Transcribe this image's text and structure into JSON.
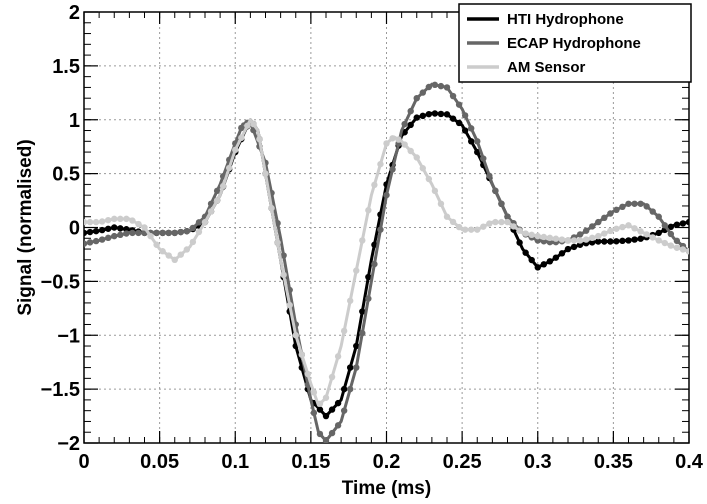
{
  "chart_data": {
    "type": "line",
    "title": "",
    "xlabel": "Time (ms)",
    "ylabel": "Signal (normalised)",
    "xlim": [
      0,
      0.4
    ],
    "ylim": [
      -2,
      2
    ],
    "grid": true,
    "legend_position": "top-right",
    "x_ticks": [
      0,
      0.05,
      0.1,
      0.15,
      0.2,
      0.25,
      0.3,
      0.35,
      0.4
    ],
    "x_tick_labels": [
      "0",
      "0.05",
      "0.1",
      "0.15",
      "0.2",
      "0.25",
      "0.3",
      "0.35",
      "0.4"
    ],
    "y_ticks": [
      -2,
      -1.5,
      -1,
      -0.5,
      0,
      0.5,
      1,
      1.5,
      2
    ],
    "y_tick_labels": [
      "−2",
      "−1.5",
      "−1",
      "−0.5",
      "0",
      "0.5",
      "1",
      "1.5",
      "2"
    ],
    "series": [
      {
        "name": "HTI Hydrophone",
        "color": "#000000",
        "points": [
          [
            0,
            -0.05
          ],
          [
            0.01,
            -0.03
          ],
          [
            0.02,
            0
          ],
          [
            0.03,
            -0.02
          ],
          [
            0.04,
            -0.05
          ],
          [
            0.05,
            -0.05
          ],
          [
            0.06,
            -0.05
          ],
          [
            0.07,
            -0.03
          ],
          [
            0.08,
            0.05
          ],
          [
            0.09,
            0.3
          ],
          [
            0.1,
            0.7
          ],
          [
            0.11,
            1.0
          ],
          [
            0.115,
            0.9
          ],
          [
            0.12,
            0.5
          ],
          [
            0.13,
            -0.3
          ],
          [
            0.14,
            -1.1
          ],
          [
            0.15,
            -1.6
          ],
          [
            0.16,
            -1.75
          ],
          [
            0.17,
            -1.6
          ],
          [
            0.18,
            -1.1
          ],
          [
            0.19,
            -0.3
          ],
          [
            0.2,
            0.4
          ],
          [
            0.21,
            0.85
          ],
          [
            0.22,
            1.02
          ],
          [
            0.23,
            1.06
          ],
          [
            0.24,
            1.05
          ],
          [
            0.25,
            0.95
          ],
          [
            0.26,
            0.7
          ],
          [
            0.27,
            0.4
          ],
          [
            0.28,
            0.1
          ],
          [
            0.29,
            -0.2
          ],
          [
            0.3,
            -0.37
          ],
          [
            0.31,
            -0.3
          ],
          [
            0.32,
            -0.2
          ],
          [
            0.33,
            -0.15
          ],
          [
            0.34,
            -0.13
          ],
          [
            0.35,
            -0.13
          ],
          [
            0.36,
            -0.12
          ],
          [
            0.37,
            -0.1
          ],
          [
            0.38,
            -0.05
          ],
          [
            0.39,
            0.02
          ],
          [
            0.4,
            0.05
          ]
        ]
      },
      {
        "name": "ECAP Hydrophone",
        "color": "#666666",
        "points": [
          [
            0,
            -0.15
          ],
          [
            0.01,
            -0.12
          ],
          [
            0.02,
            -0.08
          ],
          [
            0.03,
            -0.05
          ],
          [
            0.04,
            -0.05
          ],
          [
            0.05,
            -0.05
          ],
          [
            0.06,
            -0.05
          ],
          [
            0.07,
            -0.03
          ],
          [
            0.08,
            0.1
          ],
          [
            0.09,
            0.4
          ],
          [
            0.1,
            0.78
          ],
          [
            0.105,
            0.96
          ],
          [
            0.11,
            0.98
          ],
          [
            0.12,
            0.6
          ],
          [
            0.13,
            -0.1
          ],
          [
            0.14,
            -0.9
          ],
          [
            0.15,
            -1.6
          ],
          [
            0.155,
            -1.9
          ],
          [
            0.16,
            -1.98
          ],
          [
            0.17,
            -1.8
          ],
          [
            0.18,
            -1.3
          ],
          [
            0.19,
            -0.5
          ],
          [
            0.2,
            0.3
          ],
          [
            0.21,
            0.9
          ],
          [
            0.22,
            1.2
          ],
          [
            0.23,
            1.33
          ],
          [
            0.24,
            1.3
          ],
          [
            0.25,
            1.1
          ],
          [
            0.26,
            0.8
          ],
          [
            0.27,
            0.4
          ],
          [
            0.28,
            0.1
          ],
          [
            0.29,
            -0.05
          ],
          [
            0.3,
            -0.12
          ],
          [
            0.31,
            -0.14
          ],
          [
            0.32,
            -0.12
          ],
          [
            0.33,
            -0.05
          ],
          [
            0.34,
            0.05
          ],
          [
            0.35,
            0.15
          ],
          [
            0.36,
            0.22
          ],
          [
            0.37,
            0.22
          ],
          [
            0.38,
            0.1
          ],
          [
            0.39,
            -0.1
          ],
          [
            0.4,
            -0.22
          ]
        ]
      },
      {
        "name": "AM Sensor",
        "color": "#cccccc",
        "points": [
          [
            0,
            0.05
          ],
          [
            0.01,
            0.05
          ],
          [
            0.02,
            0.08
          ],
          [
            0.03,
            0.08
          ],
          [
            0.04,
            0
          ],
          [
            0.05,
            -0.2
          ],
          [
            0.06,
            -0.3
          ],
          [
            0.07,
            -0.18
          ],
          [
            0.08,
            0.05
          ],
          [
            0.09,
            0.3
          ],
          [
            0.1,
            0.72
          ],
          [
            0.11,
            1.0
          ],
          [
            0.115,
            0.9
          ],
          [
            0.12,
            0.5
          ],
          [
            0.13,
            -0.3
          ],
          [
            0.14,
            -1.0
          ],
          [
            0.15,
            -1.45
          ],
          [
            0.155,
            -1.65
          ],
          [
            0.16,
            -1.58
          ],
          [
            0.17,
            -1.1
          ],
          [
            0.18,
            -0.4
          ],
          [
            0.19,
            0.3
          ],
          [
            0.2,
            0.78
          ],
          [
            0.205,
            0.84
          ],
          [
            0.21,
            0.8
          ],
          [
            0.22,
            0.65
          ],
          [
            0.23,
            0.4
          ],
          [
            0.24,
            0.1
          ],
          [
            0.25,
            -0.02
          ],
          [
            0.26,
            -0.02
          ],
          [
            0.27,
            0.05
          ],
          [
            0.28,
            0.05
          ],
          [
            0.29,
            -0.05
          ],
          [
            0.3,
            -0.08
          ],
          [
            0.31,
            -0.1
          ],
          [
            0.32,
            -0.12
          ],
          [
            0.33,
            -0.12
          ],
          [
            0.34,
            -0.08
          ],
          [
            0.35,
            -0.02
          ],
          [
            0.36,
            0.02
          ],
          [
            0.37,
            -0.05
          ],
          [
            0.38,
            -0.12
          ],
          [
            0.39,
            -0.18
          ],
          [
            0.4,
            -0.22
          ]
        ]
      }
    ]
  }
}
